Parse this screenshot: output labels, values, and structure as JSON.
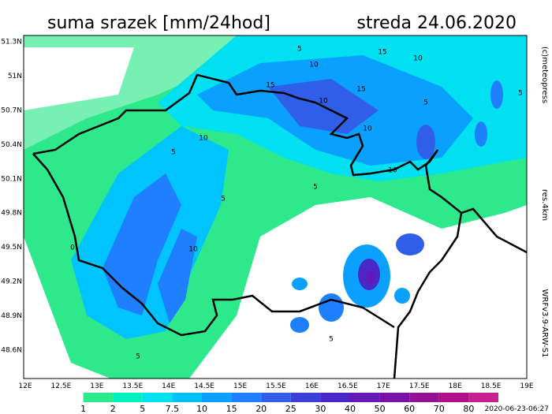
{
  "header": {
    "title": "suma srazek [mm/24hod]",
    "date": "streda 24.06.2020"
  },
  "map": {
    "lat_labels": [
      "51.3N",
      "51N",
      "50.7N",
      "50.4N",
      "50.1N",
      "49.8N",
      "49.5N",
      "49.2N",
      "48.9N",
      "48.6N"
    ],
    "lon_labels": [
      "12E",
      "12.5E",
      "13E",
      "13.5E",
      "14E",
      "14.5E",
      "15E",
      "15.5E",
      "16E",
      "16.5E",
      "17E",
      "17.5E",
      "18E",
      "18.5E",
      "19E"
    ],
    "contour_labels": [
      "5",
      "15",
      "10",
      "10",
      "15",
      "10",
      "15",
      "5",
      "10",
      "10",
      "5",
      "5",
      "10",
      "5",
      "10",
      "0",
      "5",
      "5",
      "5"
    ]
  },
  "side": {
    "copyright": "(c)meteopress",
    "resolution": "res.4km",
    "model": "WRFv3.9-ARW-S1"
  },
  "legend": {
    "levels": [
      1,
      2,
      5,
      7.5,
      10,
      15,
      20,
      25,
      30,
      40,
      50,
      60,
      70,
      80
    ],
    "colors": [
      "#ffffff",
      "#2ee88c",
      "#00f0c0",
      "#00e0f0",
      "#00c4ff",
      "#0aa0ff",
      "#1e80ff",
      "#2f5fe8",
      "#3a40d8",
      "#4a28c8",
      "#6418b8",
      "#7a10a8",
      "#961098",
      "#b01088",
      "#c82090"
    ]
  },
  "footer": {
    "timestamp": "2020-06-23-06:27"
  }
}
